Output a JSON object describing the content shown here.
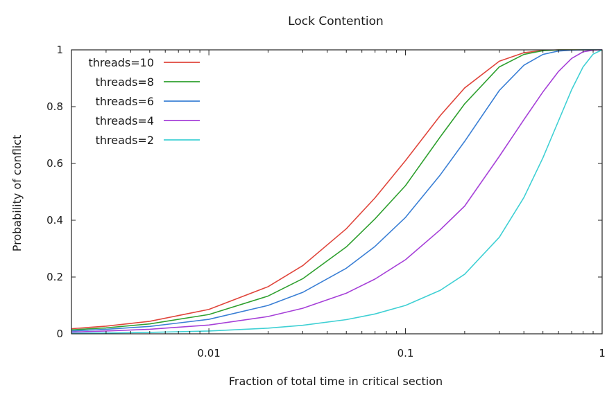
{
  "chart_data": {
    "type": "line",
    "title": "Lock Contention",
    "xlabel": "Fraction of total time in critical section",
    "ylabel": "Probability of conflict",
    "xscale": "log",
    "xlim": [
      0.002,
      1
    ],
    "ylim": [
      0,
      1
    ],
    "grid": false,
    "legend_position": "top-left",
    "x_ticks": [
      {
        "value": 0.01,
        "label": "0.01"
      },
      {
        "value": 0.1,
        "label": "0.1"
      },
      {
        "value": 1,
        "label": "1"
      }
    ],
    "y_ticks": [
      {
        "value": 0,
        "label": "0"
      },
      {
        "value": 0.2,
        "label": "0.2"
      },
      {
        "value": 0.4,
        "label": "0.4"
      },
      {
        "value": 0.6,
        "label": "0.6"
      },
      {
        "value": 0.8,
        "label": "0.8"
      },
      {
        "value": 1,
        "label": "1"
      }
    ],
    "x": [
      0.002,
      0.003,
      0.005,
      0.01,
      0.02,
      0.03,
      0.05,
      0.07,
      0.1,
      0.15,
      0.2,
      0.3,
      0.4,
      0.5,
      0.6,
      0.7,
      0.8,
      0.9,
      1.0
    ],
    "series": [
      {
        "name": "threads=10",
        "color": "#e0463c",
        "values": [
          0.018,
          0.027,
          0.044,
          0.086,
          0.166,
          0.24,
          0.37,
          0.479,
          0.61,
          0.768,
          0.866,
          0.96,
          0.99,
          0.998,
          1.0,
          1.0,
          1.0,
          1.0,
          1.0
        ]
      },
      {
        "name": "threads=8",
        "color": "#2fa02f",
        "values": [
          0.014,
          0.021,
          0.035,
          0.068,
          0.133,
          0.194,
          0.306,
          0.405,
          0.522,
          0.693,
          0.81,
          0.94,
          0.984,
          0.997,
          1.0,
          1.0,
          1.0,
          1.0,
          1.0
        ]
      },
      {
        "name": "threads=6",
        "color": "#3a7fd5",
        "values": [
          0.01,
          0.016,
          0.026,
          0.051,
          0.1,
          0.146,
          0.231,
          0.308,
          0.41,
          0.559,
          0.678,
          0.857,
          0.946,
          0.984,
          0.996,
          0.999,
          1.0,
          1.0,
          1.0
        ]
      },
      {
        "name": "threads=4",
        "color": "#a640d8",
        "values": [
          0.006,
          0.01,
          0.016,
          0.031,
          0.061,
          0.09,
          0.143,
          0.193,
          0.261,
          0.366,
          0.45,
          0.625,
          0.754,
          0.852,
          0.924,
          0.97,
          0.993,
          0.999,
          1.0
        ]
      },
      {
        "name": "threads=2",
        "color": "#3fd0d4",
        "values": [
          0.002,
          0.003,
          0.005,
          0.01,
          0.02,
          0.03,
          0.05,
          0.07,
          0.1,
          0.153,
          0.21,
          0.34,
          0.48,
          0.62,
          0.75,
          0.86,
          0.94,
          0.985,
          1.0
        ]
      }
    ]
  }
}
